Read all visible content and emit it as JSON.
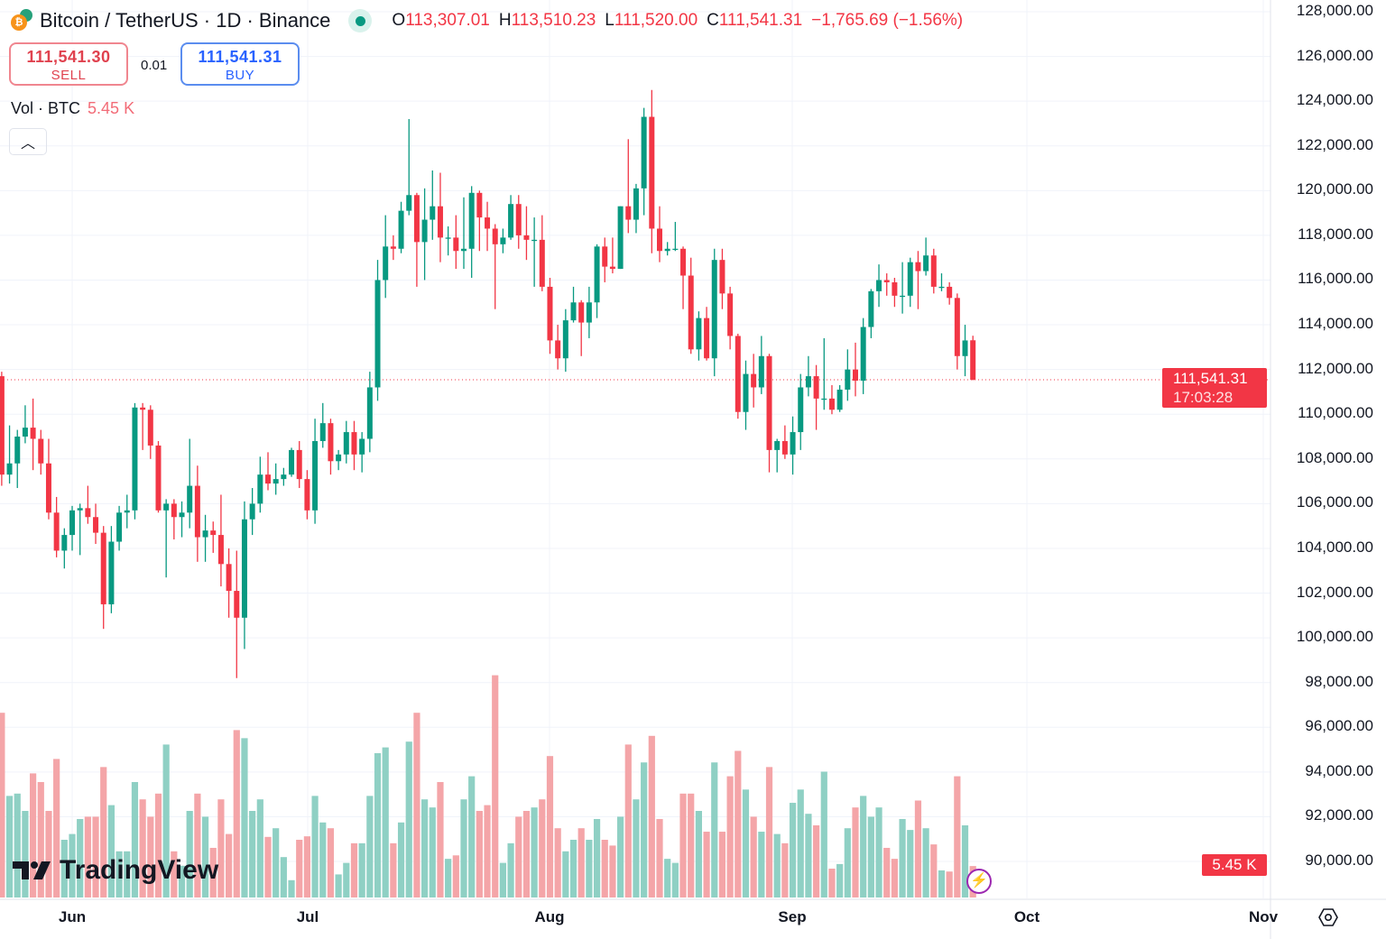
{
  "header": {
    "symbol_title": "Bitcoin / TetherUS · 1D · Binance",
    "ohlc": [
      {
        "key": "O",
        "value": "113,307.01"
      },
      {
        "key": "H",
        "value": "113,510.23"
      },
      {
        "key": "L",
        "value": "111,520.00"
      },
      {
        "key": "C",
        "value": "111,541.31"
      }
    ],
    "change": "−1,765.69 (−1.56%)"
  },
  "trade": {
    "sell_price": "111,541.30",
    "sell_label": "SELL",
    "spread": "0.01",
    "buy_price": "111,541.31",
    "buy_label": "BUY"
  },
  "volume_legend": {
    "label": "Vol · BTC",
    "value": "5.45 K"
  },
  "price_tag": {
    "price": "111,541.31",
    "countdown": "17:03:28"
  },
  "volume_tag": "5.45 K",
  "brand": "TradingView",
  "colors": {
    "up": "#089981",
    "down": "#f23645",
    "vol_up": "#8fd0c4",
    "vol_down": "#f4a5a8",
    "grid": "#f0f3fa"
  },
  "icons": {
    "chart_settings": "hexagon-gear-icon",
    "flash": "lightning-icon",
    "collapse": "chevron-up-icon",
    "live": "live-dot-icon"
  },
  "chart_data": {
    "type": "candlestick",
    "title": "Bitcoin / TetherUS · 1D · Binance",
    "y_ticks": [
      "128,000.00",
      "126,000.00",
      "124,000.00",
      "122,000.00",
      "120,000.00",
      "118,000.00",
      "116,000.00",
      "114,000.00",
      "112,000.00",
      "110,000.00",
      "108,000.00",
      "106,000.00",
      "104,000.00",
      "102,000.00",
      "100,000.00",
      "98,000.00",
      "96,000.00",
      "94,000.00",
      "92,000.00",
      "90,000.00"
    ],
    "ylim": [
      89000,
      128600
    ],
    "x_ticks": [
      "Jun",
      "Jul",
      "Aug",
      "Sep",
      "Oct",
      "Nov"
    ],
    "grid": true,
    "last_price_line": 111541.31,
    "columns": [
      "date",
      "open",
      "high",
      "low",
      "close",
      "volume_k"
    ],
    "candles": [
      [
        "May 23",
        111700,
        111900,
        106800,
        107300,
        32
      ],
      [
        "May 24",
        107300,
        109500,
        106900,
        107800,
        17.6
      ],
      [
        "May 25",
        107800,
        109300,
        106700,
        109000,
        18
      ],
      [
        "May 26",
        109000,
        110400,
        108700,
        109400,
        15
      ],
      [
        "May 27",
        109400,
        110700,
        107500,
        108900,
        21.5
      ],
      [
        "May 28",
        108900,
        109300,
        107300,
        107800,
        20
      ],
      [
        "May 29",
        107800,
        108900,
        105300,
        105600,
        15
      ],
      [
        "May 30",
        105600,
        106300,
        103600,
        103900,
        24
      ],
      [
        "May 31",
        103900,
        104900,
        103100,
        104600,
        10
      ],
      [
        "Jun 1",
        104600,
        105900,
        103900,
        105700,
        11
      ],
      [
        "Jun 2",
        105700,
        106000,
        103700,
        105800,
        13.6
      ],
      [
        "Jun 3",
        105800,
        106800,
        105100,
        105400,
        14
      ],
      [
        "Jun 4",
        105400,
        106000,
        104200,
        104700,
        14
      ],
      [
        "Jun 5",
        104700,
        105000,
        100400,
        101500,
        22.6
      ],
      [
        "Jun 6",
        101500,
        105000,
        101100,
        104300,
        16
      ],
      [
        "Jun 7",
        104300,
        105900,
        103900,
        105600,
        8
      ],
      [
        "Jun 8",
        105600,
        106400,
        104900,
        105700,
        8
      ],
      [
        "Jun 9",
        105700,
        110500,
        105300,
        110300,
        20
      ],
      [
        "Jun 10",
        110300,
        110500,
        108400,
        110200,
        17
      ],
      [
        "Jun 11",
        110200,
        110400,
        108000,
        108600,
        14
      ],
      [
        "Jun 12",
        108600,
        108800,
        105600,
        105700,
        18
      ],
      [
        "Jun 13",
        105700,
        106200,
        102700,
        106000,
        26.5
      ],
      [
        "Jun 14",
        106000,
        106200,
        104400,
        105400,
        8
      ],
      [
        "Jun 15",
        105400,
        106100,
        104500,
        105600,
        5.5
      ],
      [
        "Jun 16",
        105600,
        108900,
        104900,
        106800,
        15
      ],
      [
        "Jun 17",
        106800,
        107700,
        103400,
        104500,
        18
      ],
      [
        "Jun 18",
        104500,
        105500,
        103400,
        104800,
        14
      ],
      [
        "Jun 19",
        104800,
        105200,
        103800,
        104600,
        8.6
      ],
      [
        "Jun 20",
        104600,
        106400,
        102300,
        103300,
        17
      ],
      [
        "Jun 21",
        103300,
        104000,
        100900,
        102100,
        11
      ],
      [
        "Jun 22",
        102100,
        103900,
        98200,
        100900,
        29
      ],
      [
        "Jun 23",
        100900,
        106100,
        99500,
        105300,
        27.6
      ],
      [
        "Jun 24",
        105300,
        106700,
        104600,
        106000,
        15
      ],
      [
        "Jun 25",
        106000,
        108100,
        105600,
        107300,
        17
      ],
      [
        "Jun 26",
        107300,
        108300,
        106600,
        106900,
        10.5
      ],
      [
        "Jun 27",
        106900,
        107800,
        106400,
        107100,
        12
      ],
      [
        "Jun 28",
        107100,
        107600,
        106800,
        107300,
        7
      ],
      [
        "Jun 29",
        107300,
        108500,
        107200,
        108400,
        3
      ],
      [
        "Jun 30",
        108400,
        108800,
        106700,
        107100,
        10
      ],
      [
        "Jul 1",
        107100,
        107500,
        105300,
        105700,
        10.6
      ],
      [
        "Jul 2",
        105700,
        109800,
        105100,
        108800,
        17.6
      ],
      [
        "Jul 3",
        108800,
        110500,
        108500,
        109600,
        13
      ],
      [
        "Jul 4",
        109600,
        109800,
        107300,
        107900,
        12
      ],
      [
        "Jul 5",
        107900,
        108400,
        107500,
        108200,
        4
      ],
      [
        "Jul 6",
        108200,
        109700,
        107800,
        109200,
        6
      ],
      [
        "Jul 7",
        109200,
        109700,
        107500,
        108200,
        9.4
      ],
      [
        "Jul 8",
        108200,
        109200,
        107400,
        108900,
        9.4
      ],
      [
        "Jul 9",
        108900,
        111900,
        108300,
        111200,
        17.6
      ],
      [
        "Jul 10",
        111200,
        116900,
        110600,
        116000,
        25
      ],
      [
        "Jul 11",
        116000,
        118900,
        115200,
        117500,
        26
      ],
      [
        "Jul 12",
        117500,
        118000,
        116900,
        117400,
        9.4
      ],
      [
        "Jul 13",
        117400,
        119500,
        117200,
        119100,
        13
      ],
      [
        "Jul 14",
        119100,
        123200,
        118900,
        119800,
        27
      ],
      [
        "Jul 15",
        119800,
        119900,
        115700,
        117700,
        32
      ],
      [
        "Jul 16",
        117700,
        120100,
        116000,
        118700,
        17
      ],
      [
        "Jul 17",
        118700,
        120900,
        117800,
        119300,
        15.6
      ],
      [
        "Jul 18",
        119300,
        120800,
        116800,
        117900,
        20
      ],
      [
        "Jul 19",
        117900,
        118400,
        117100,
        117900,
        6.7
      ],
      [
        "Jul 20",
        117900,
        118900,
        116500,
        117300,
        7.3
      ],
      [
        "Jul 21",
        117300,
        119700,
        116500,
        117400,
        17
      ],
      [
        "Jul 22",
        117400,
        120200,
        116100,
        119900,
        21
      ],
      [
        "Jul 23",
        119900,
        120000,
        117300,
        118800,
        15
      ],
      [
        "Jul 24",
        118800,
        119500,
        117300,
        118300,
        16
      ],
      [
        "Jul 25",
        118300,
        118500,
        114700,
        117600,
        38.5
      ],
      [
        "Jul 26",
        117600,
        118300,
        117200,
        117900,
        6
      ],
      [
        "Jul 27",
        117900,
        119800,
        117800,
        119400,
        9.4
      ],
      [
        "Jul 28",
        119400,
        119800,
        117400,
        118000,
        14
      ],
      [
        "Jul 29",
        118000,
        119300,
        116900,
        117800,
        15
      ],
      [
        "Jul 30",
        117800,
        118800,
        115700,
        117800,
        15.6
      ],
      [
        "Jul 31",
        117800,
        118900,
        115500,
        115700,
        17
      ],
      [
        "Aug 1",
        115700,
        116100,
        112700,
        113300,
        24.5
      ],
      [
        "Aug 2",
        113300,
        114000,
        112000,
        112500,
        12
      ],
      [
        "Aug 3",
        112500,
        114700,
        111900,
        114200,
        8
      ],
      [
        "Aug 4",
        114200,
        115700,
        114100,
        115000,
        10
      ],
      [
        "Aug 5",
        115000,
        115100,
        112600,
        114100,
        12
      ],
      [
        "Aug 6",
        114100,
        115700,
        113400,
        115000,
        10
      ],
      [
        "Aug 7",
        115000,
        117600,
        114300,
        117500,
        13.6
      ],
      [
        "Aug 8",
        117500,
        117900,
        115900,
        116600,
        10
      ],
      [
        "Aug 9",
        116600,
        117900,
        116300,
        116500,
        9
      ],
      [
        "Aug 10",
        116500,
        119300,
        116500,
        119300,
        14
      ],
      [
        "Aug 11",
        119300,
        122300,
        118100,
        118700,
        26.5
      ],
      [
        "Aug 12",
        118700,
        120300,
        118100,
        120100,
        17
      ],
      [
        "Aug 13",
        120100,
        123700,
        118900,
        123300,
        23.4
      ],
      [
        "Aug 14",
        123300,
        124500,
        117200,
        118300,
        28
      ],
      [
        "Aug 15",
        118300,
        119300,
        116800,
        117300,
        13.6
      ],
      [
        "Aug 16",
        117300,
        117700,
        117100,
        117400,
        6.7
      ],
      [
        "Aug 17",
        117400,
        118600,
        117300,
        117400,
        6
      ],
      [
        "Aug 18",
        117400,
        117500,
        114700,
        116200,
        18
      ],
      [
        "Aug 19",
        116200,
        117000,
        112700,
        112900,
        18
      ],
      [
        "Aug 20",
        112900,
        114600,
        112400,
        114300,
        15
      ],
      [
        "Aug 21",
        114300,
        114800,
        112400,
        112500,
        11.4
      ],
      [
        "Aug 22",
        112500,
        117400,
        111700,
        116900,
        23.4
      ],
      [
        "Aug 23",
        116900,
        117400,
        114700,
        115400,
        11.4
      ],
      [
        "Aug 24",
        115400,
        115700,
        112900,
        113500,
        21
      ],
      [
        "Aug 25",
        113500,
        113600,
        109800,
        110100,
        25.4
      ],
      [
        "Aug 26",
        110100,
        112400,
        109300,
        111800,
        18.7
      ],
      [
        "Aug 27",
        111800,
        112700,
        110300,
        111200,
        14
      ],
      [
        "Aug 28",
        111200,
        113500,
        110900,
        112600,
        11.4
      ],
      [
        "Aug 29",
        112600,
        112700,
        107400,
        108400,
        22.6
      ],
      [
        "Aug 30",
        108400,
        108900,
        107400,
        108800,
        11
      ],
      [
        "Aug 31",
        108800,
        109500,
        108000,
        108200,
        9.4
      ],
      [
        "Sep 1",
        108200,
        109900,
        107300,
        109200,
        16.4
      ],
      [
        "Sep 2",
        109200,
        111800,
        108400,
        111200,
        18.7
      ],
      [
        "Sep 3",
        111200,
        112600,
        110800,
        111700,
        14.5
      ],
      [
        "Sep 4",
        111700,
        112200,
        109300,
        110700,
        12.5
      ],
      [
        "Sep 5",
        110700,
        113400,
        110200,
        110700,
        21.8
      ],
      [
        "Sep 6",
        110700,
        111300,
        110000,
        110200,
        5
      ],
      [
        "Sep 7",
        110200,
        111300,
        110100,
        111100,
        5.8
      ],
      [
        "Sep 8",
        111100,
        112900,
        110600,
        112000,
        12
      ],
      [
        "Sep 9",
        112000,
        113200,
        110800,
        111500,
        15.6
      ],
      [
        "Sep 10",
        111500,
        114300,
        110900,
        113900,
        17.6
      ],
      [
        "Sep 11",
        113900,
        115600,
        113400,
        115500,
        14
      ],
      [
        "Sep 12",
        115500,
        116700,
        114800,
        116000,
        15.6
      ],
      [
        "Sep 13",
        116000,
        116300,
        115300,
        115900,
        8.6
      ],
      [
        "Sep 14",
        115900,
        116100,
        114800,
        115300,
        6.7
      ],
      [
        "Sep 15",
        115300,
        116800,
        114500,
        115300,
        13.6
      ],
      [
        "Sep 16",
        115300,
        117000,
        114800,
        116800,
        11.7
      ],
      [
        "Sep 17",
        116800,
        117300,
        114700,
        116400,
        16.8
      ],
      [
        "Sep 18",
        116400,
        117900,
        116200,
        117100,
        12
      ],
      [
        "Sep 19",
        117100,
        117400,
        115400,
        115700,
        9.2
      ],
      [
        "Sep 20",
        115700,
        116300,
        115500,
        115700,
        4.7
      ],
      [
        "Sep 21",
        115700,
        115900,
        114900,
        115200,
        4.5
      ],
      [
        "Sep 22",
        115200,
        115400,
        112000,
        112600,
        21
      ],
      [
        "Sep 23",
        112600,
        114000,
        111700,
        113300,
        12.5
      ],
      [
        "Sep 24",
        113307.01,
        113510.23,
        111520.0,
        111541.31,
        5.45
      ]
    ]
  }
}
